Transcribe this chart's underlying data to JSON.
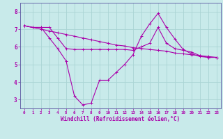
{
  "xlabel": "Windchill (Refroidissement éolien,°C)",
  "bg_color": "#c8eaea",
  "grid_color": "#aad4d4",
  "line_color": "#aa00aa",
  "spine_color": "#6666aa",
  "xlim": [
    -0.5,
    23.5
  ],
  "ylim": [
    2.5,
    8.5
  ],
  "xticks": [
    0,
    1,
    2,
    3,
    4,
    5,
    6,
    7,
    8,
    9,
    10,
    11,
    12,
    13,
    14,
    15,
    16,
    17,
    18,
    19,
    20,
    21,
    22,
    23
  ],
  "yticks": [
    3,
    4,
    5,
    6,
    7,
    8
  ],
  "line1_x": [
    0,
    1,
    2,
    3,
    4,
    5,
    6,
    7,
    8,
    9,
    10,
    11,
    12,
    13,
    14,
    15,
    16,
    17,
    18,
    19,
    20,
    21,
    22,
    23
  ],
  "line1_y": [
    7.2,
    7.1,
    7.1,
    7.1,
    6.5,
    5.9,
    5.85,
    5.85,
    5.85,
    5.85,
    5.85,
    5.85,
    5.85,
    5.8,
    6.0,
    6.2,
    7.1,
    6.2,
    5.9,
    5.8,
    5.7,
    5.5,
    5.4,
    5.4
  ],
  "line2_x": [
    0,
    1,
    2,
    3,
    4,
    5,
    6,
    7,
    8,
    9,
    10,
    11,
    12,
    13,
    14,
    15,
    16,
    17,
    18,
    19,
    20,
    21,
    22,
    23
  ],
  "line2_y": [
    7.2,
    7.1,
    7.1,
    6.5,
    5.9,
    5.2,
    3.2,
    2.7,
    2.8,
    4.1,
    4.1,
    4.55,
    5.0,
    5.55,
    6.6,
    7.3,
    7.9,
    7.1,
    6.45,
    5.85,
    5.6,
    5.45,
    5.4,
    5.4
  ],
  "line3_x": [
    0,
    1,
    2,
    3,
    4,
    5,
    6,
    7,
    8,
    9,
    10,
    11,
    12,
    13,
    14,
    15,
    16,
    17,
    18,
    19,
    20,
    21,
    22,
    23
  ],
  "line3_y": [
    7.2,
    7.1,
    7.0,
    6.9,
    6.8,
    6.7,
    6.6,
    6.5,
    6.4,
    6.3,
    6.2,
    6.1,
    6.05,
    5.95,
    5.9,
    5.85,
    5.8,
    5.75,
    5.65,
    5.6,
    5.55,
    5.5,
    5.45,
    5.4
  ],
  "xlabel_fontsize": 5.5,
  "xtick_fontsize": 4.2,
  "ytick_fontsize": 5.5,
  "linewidth": 0.8,
  "markersize": 2.5
}
